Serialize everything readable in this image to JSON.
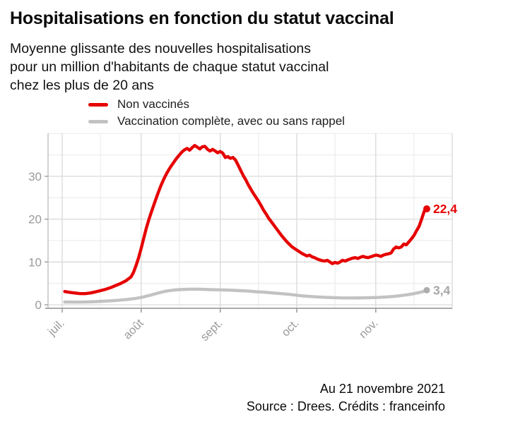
{
  "header": {
    "title": "Hospitalisations en fonction du statut vaccinal",
    "subtitle": "Moyenne glissante des nouvelles hospitalisations\npour un million d'habitants de chaque statut vaccinal\nchez les plus de 20 ans"
  },
  "legend": {
    "items": [
      {
        "id": "non-vaccines",
        "label": "Non vaccinés",
        "color": "#e60000"
      },
      {
        "id": "vaccination-complete",
        "label": "Vaccination complète, avec ou sans rappel",
        "color": "#c2c2c2"
      }
    ]
  },
  "chart_data": {
    "type": "line",
    "title": "Hospitalisations en fonction du statut vaccinal",
    "xlabel": "",
    "ylabel": "",
    "x_range": [
      "2021-07-02",
      "2021-11-21"
    ],
    "ylim": [
      0,
      39
    ],
    "grid": true,
    "legend_position": "top",
    "y_axis": {
      "ticks": [
        0,
        10,
        20,
        30
      ],
      "minor_ticks": [
        5,
        15,
        25,
        35,
        40
      ]
    },
    "x_axis": {
      "tick_labels": [
        "juil.",
        "août",
        "sept.",
        "oct.",
        "nov."
      ],
      "tick_dates": [
        "2021-07-01",
        "2021-08-01",
        "2021-09-01",
        "2021-10-01",
        "2021-11-01"
      ],
      "gridline_dates": [
        "2021-07-01",
        "2021-08-01",
        "2021-09-01",
        "2021-10-01",
        "2021-11-01",
        "2021-12-01"
      ],
      "minor_gridline_dates": [
        "2021-07-16",
        "2021-08-16",
        "2021-09-16",
        "2021-10-16",
        "2021-11-16"
      ]
    },
    "series": [
      {
        "name": "Non vaccinés",
        "color": "#e60000",
        "end_label": "22,4",
        "end_value": 22.4,
        "points": [
          [
            "2021-07-02",
            3.1
          ],
          [
            "2021-07-04",
            2.9
          ],
          [
            "2021-07-06",
            2.75
          ],
          [
            "2021-07-08",
            2.6
          ],
          [
            "2021-07-10",
            2.6
          ],
          [
            "2021-07-12",
            2.75
          ],
          [
            "2021-07-14",
            3.0
          ],
          [
            "2021-07-16",
            3.3
          ],
          [
            "2021-07-18",
            3.6
          ],
          [
            "2021-07-20",
            4.0
          ],
          [
            "2021-07-22",
            4.5
          ],
          [
            "2021-07-24",
            5.0
          ],
          [
            "2021-07-26",
            5.6
          ],
          [
            "2021-07-28",
            6.5
          ],
          [
            "2021-07-29",
            7.6
          ],
          [
            "2021-07-30",
            9.2
          ],
          [
            "2021-07-31",
            11.0
          ],
          [
            "2021-08-01",
            13.2
          ],
          [
            "2021-08-02",
            15.6
          ],
          [
            "2021-08-03",
            17.9
          ],
          [
            "2021-08-04",
            19.9
          ],
          [
            "2021-08-05",
            21.7
          ],
          [
            "2021-08-06",
            23.4
          ],
          [
            "2021-08-07",
            25.1
          ],
          [
            "2021-08-08",
            26.7
          ],
          [
            "2021-08-09",
            28.2
          ],
          [
            "2021-08-10",
            29.5
          ],
          [
            "2021-08-11",
            30.7
          ],
          [
            "2021-08-12",
            31.7
          ],
          [
            "2021-08-13",
            32.6
          ],
          [
            "2021-08-14",
            33.5
          ],
          [
            "2021-08-15",
            34.3
          ],
          [
            "2021-08-16",
            35.0
          ],
          [
            "2021-08-17",
            35.7
          ],
          [
            "2021-08-18",
            36.2
          ],
          [
            "2021-08-19",
            36.5
          ],
          [
            "2021-08-20",
            36.1
          ],
          [
            "2021-08-21",
            36.7
          ],
          [
            "2021-08-22",
            37.2
          ],
          [
            "2021-08-23",
            36.8
          ],
          [
            "2021-08-24",
            36.4
          ],
          [
            "2021-08-25",
            36.9
          ],
          [
            "2021-08-26",
            37.0
          ],
          [
            "2021-08-27",
            36.3
          ],
          [
            "2021-08-28",
            35.9
          ],
          [
            "2021-08-29",
            36.3
          ],
          [
            "2021-08-30",
            35.9
          ],
          [
            "2021-08-31",
            35.5
          ],
          [
            "2021-09-01",
            35.8
          ],
          [
            "2021-09-02",
            35.4
          ],
          [
            "2021-09-03",
            34.4
          ],
          [
            "2021-09-04",
            34.6
          ],
          [
            "2021-09-05",
            34.2
          ],
          [
            "2021-09-06",
            34.4
          ],
          [
            "2021-09-07",
            33.8
          ],
          [
            "2021-09-08",
            32.6
          ],
          [
            "2021-09-09",
            31.4
          ],
          [
            "2021-09-10",
            30.2
          ],
          [
            "2021-09-11",
            29.2
          ],
          [
            "2021-09-12",
            28.0
          ],
          [
            "2021-09-13",
            27.0
          ],
          [
            "2021-09-14",
            26.0
          ],
          [
            "2021-09-15",
            25.1
          ],
          [
            "2021-09-16",
            24.2
          ],
          [
            "2021-09-17",
            23.2
          ],
          [
            "2021-09-18",
            22.1
          ],
          [
            "2021-09-19",
            21.2
          ],
          [
            "2021-09-20",
            20.2
          ],
          [
            "2021-09-21",
            19.4
          ],
          [
            "2021-09-22",
            18.6
          ],
          [
            "2021-09-23",
            17.8
          ],
          [
            "2021-09-24",
            17.0
          ],
          [
            "2021-09-25",
            16.2
          ],
          [
            "2021-09-26",
            15.5
          ],
          [
            "2021-09-27",
            14.8
          ],
          [
            "2021-09-28",
            14.2
          ],
          [
            "2021-09-29",
            13.6
          ],
          [
            "2021-09-30",
            13.2
          ],
          [
            "2021-10-01",
            12.8
          ],
          [
            "2021-10-02",
            12.4
          ],
          [
            "2021-10-03",
            12.0
          ],
          [
            "2021-10-04",
            11.7
          ],
          [
            "2021-10-05",
            11.4
          ],
          [
            "2021-10-06",
            11.6
          ],
          [
            "2021-10-07",
            11.2
          ],
          [
            "2021-10-08",
            11.0
          ],
          [
            "2021-10-09",
            10.7
          ],
          [
            "2021-10-10",
            10.5
          ],
          [
            "2021-10-11",
            10.3
          ],
          [
            "2021-10-12",
            10.2
          ],
          [
            "2021-10-13",
            10.4
          ],
          [
            "2021-10-14",
            10.0
          ],
          [
            "2021-10-15",
            9.6
          ],
          [
            "2021-10-16",
            9.9
          ],
          [
            "2021-10-17",
            9.7
          ],
          [
            "2021-10-18",
            10.0
          ],
          [
            "2021-10-19",
            10.4
          ],
          [
            "2021-10-20",
            10.2
          ],
          [
            "2021-10-21",
            10.5
          ],
          [
            "2021-10-22",
            10.7
          ],
          [
            "2021-10-23",
            10.9
          ],
          [
            "2021-10-24",
            11.0
          ],
          [
            "2021-10-25",
            10.8
          ],
          [
            "2021-10-26",
            11.1
          ],
          [
            "2021-10-27",
            11.3
          ],
          [
            "2021-10-28",
            11.1
          ],
          [
            "2021-10-29",
            11.0
          ],
          [
            "2021-10-30",
            11.2
          ],
          [
            "2021-10-31",
            11.4
          ],
          [
            "2021-11-01",
            11.6
          ],
          [
            "2021-11-02",
            11.5
          ],
          [
            "2021-11-03",
            11.3
          ],
          [
            "2021-11-04",
            11.6
          ],
          [
            "2021-11-05",
            11.8
          ],
          [
            "2021-11-06",
            11.9
          ],
          [
            "2021-11-07",
            12.1
          ],
          [
            "2021-11-08",
            13.0
          ],
          [
            "2021-11-09",
            13.5
          ],
          [
            "2021-11-10",
            13.3
          ],
          [
            "2021-11-11",
            13.5
          ],
          [
            "2021-11-12",
            14.2
          ],
          [
            "2021-11-13",
            14.0
          ],
          [
            "2021-11-14",
            14.7
          ],
          [
            "2021-11-15",
            15.4
          ],
          [
            "2021-11-16",
            16.2
          ],
          [
            "2021-11-17",
            17.3
          ],
          [
            "2021-11-18",
            18.3
          ],
          [
            "2021-11-19",
            20.0
          ],
          [
            "2021-11-20",
            21.8
          ],
          [
            "2021-11-21",
            22.4
          ]
        ]
      },
      {
        "name": "Vaccination complète, avec ou sans rappel",
        "color": "#c2c2c2",
        "end_label": "3,4",
        "end_value": 3.4,
        "points": [
          [
            "2021-07-02",
            0.65
          ],
          [
            "2021-07-06",
            0.62
          ],
          [
            "2021-07-10",
            0.65
          ],
          [
            "2021-07-14",
            0.72
          ],
          [
            "2021-07-18",
            0.85
          ],
          [
            "2021-07-22",
            1.0
          ],
          [
            "2021-07-26",
            1.2
          ],
          [
            "2021-07-30",
            1.5
          ],
          [
            "2021-08-02",
            1.85
          ],
          [
            "2021-08-05",
            2.3
          ],
          [
            "2021-08-08",
            2.8
          ],
          [
            "2021-08-10",
            3.1
          ],
          [
            "2021-08-12",
            3.3
          ],
          [
            "2021-08-14",
            3.45
          ],
          [
            "2021-08-16",
            3.55
          ],
          [
            "2021-08-19",
            3.6
          ],
          [
            "2021-08-22",
            3.65
          ],
          [
            "2021-08-25",
            3.6
          ],
          [
            "2021-08-28",
            3.55
          ],
          [
            "2021-08-31",
            3.5
          ],
          [
            "2021-09-03",
            3.45
          ],
          [
            "2021-09-06",
            3.4
          ],
          [
            "2021-09-09",
            3.3
          ],
          [
            "2021-09-12",
            3.2
          ],
          [
            "2021-09-15",
            3.05
          ],
          [
            "2021-09-18",
            2.95
          ],
          [
            "2021-09-21",
            2.8
          ],
          [
            "2021-09-24",
            2.65
          ],
          [
            "2021-09-27",
            2.5
          ],
          [
            "2021-09-30",
            2.3
          ],
          [
            "2021-10-03",
            2.1
          ],
          [
            "2021-10-06",
            1.95
          ],
          [
            "2021-10-09",
            1.85
          ],
          [
            "2021-10-12",
            1.75
          ],
          [
            "2021-10-15",
            1.68
          ],
          [
            "2021-10-18",
            1.62
          ],
          [
            "2021-10-21",
            1.6
          ],
          [
            "2021-10-24",
            1.6
          ],
          [
            "2021-10-27",
            1.62
          ],
          [
            "2021-10-30",
            1.66
          ],
          [
            "2021-11-02",
            1.72
          ],
          [
            "2021-11-05",
            1.82
          ],
          [
            "2021-11-08",
            1.95
          ],
          [
            "2021-11-11",
            2.15
          ],
          [
            "2021-11-14",
            2.4
          ],
          [
            "2021-11-16",
            2.6
          ],
          [
            "2021-11-18",
            2.85
          ],
          [
            "2021-11-20",
            3.15
          ],
          [
            "2021-11-21",
            3.4
          ]
        ]
      }
    ],
    "annotations": [
      {
        "text": "22,4",
        "color": "#e60000"
      },
      {
        "text": "3,4",
        "color": "#a6a6a6"
      }
    ]
  },
  "footer": {
    "date_note": "Au 21 novembre 2021",
    "source": "Source : Drees. Crédits : franceinfo"
  },
  "colors": {
    "accent_red": "#e60000",
    "line_gray": "#c2c2c2",
    "axis_text": "#9a9a9a",
    "grid_major": "#d9d9d9",
    "grid_minor": "#ececec",
    "axis_line": "#9e9e9e",
    "text": "#0a0a0a"
  }
}
